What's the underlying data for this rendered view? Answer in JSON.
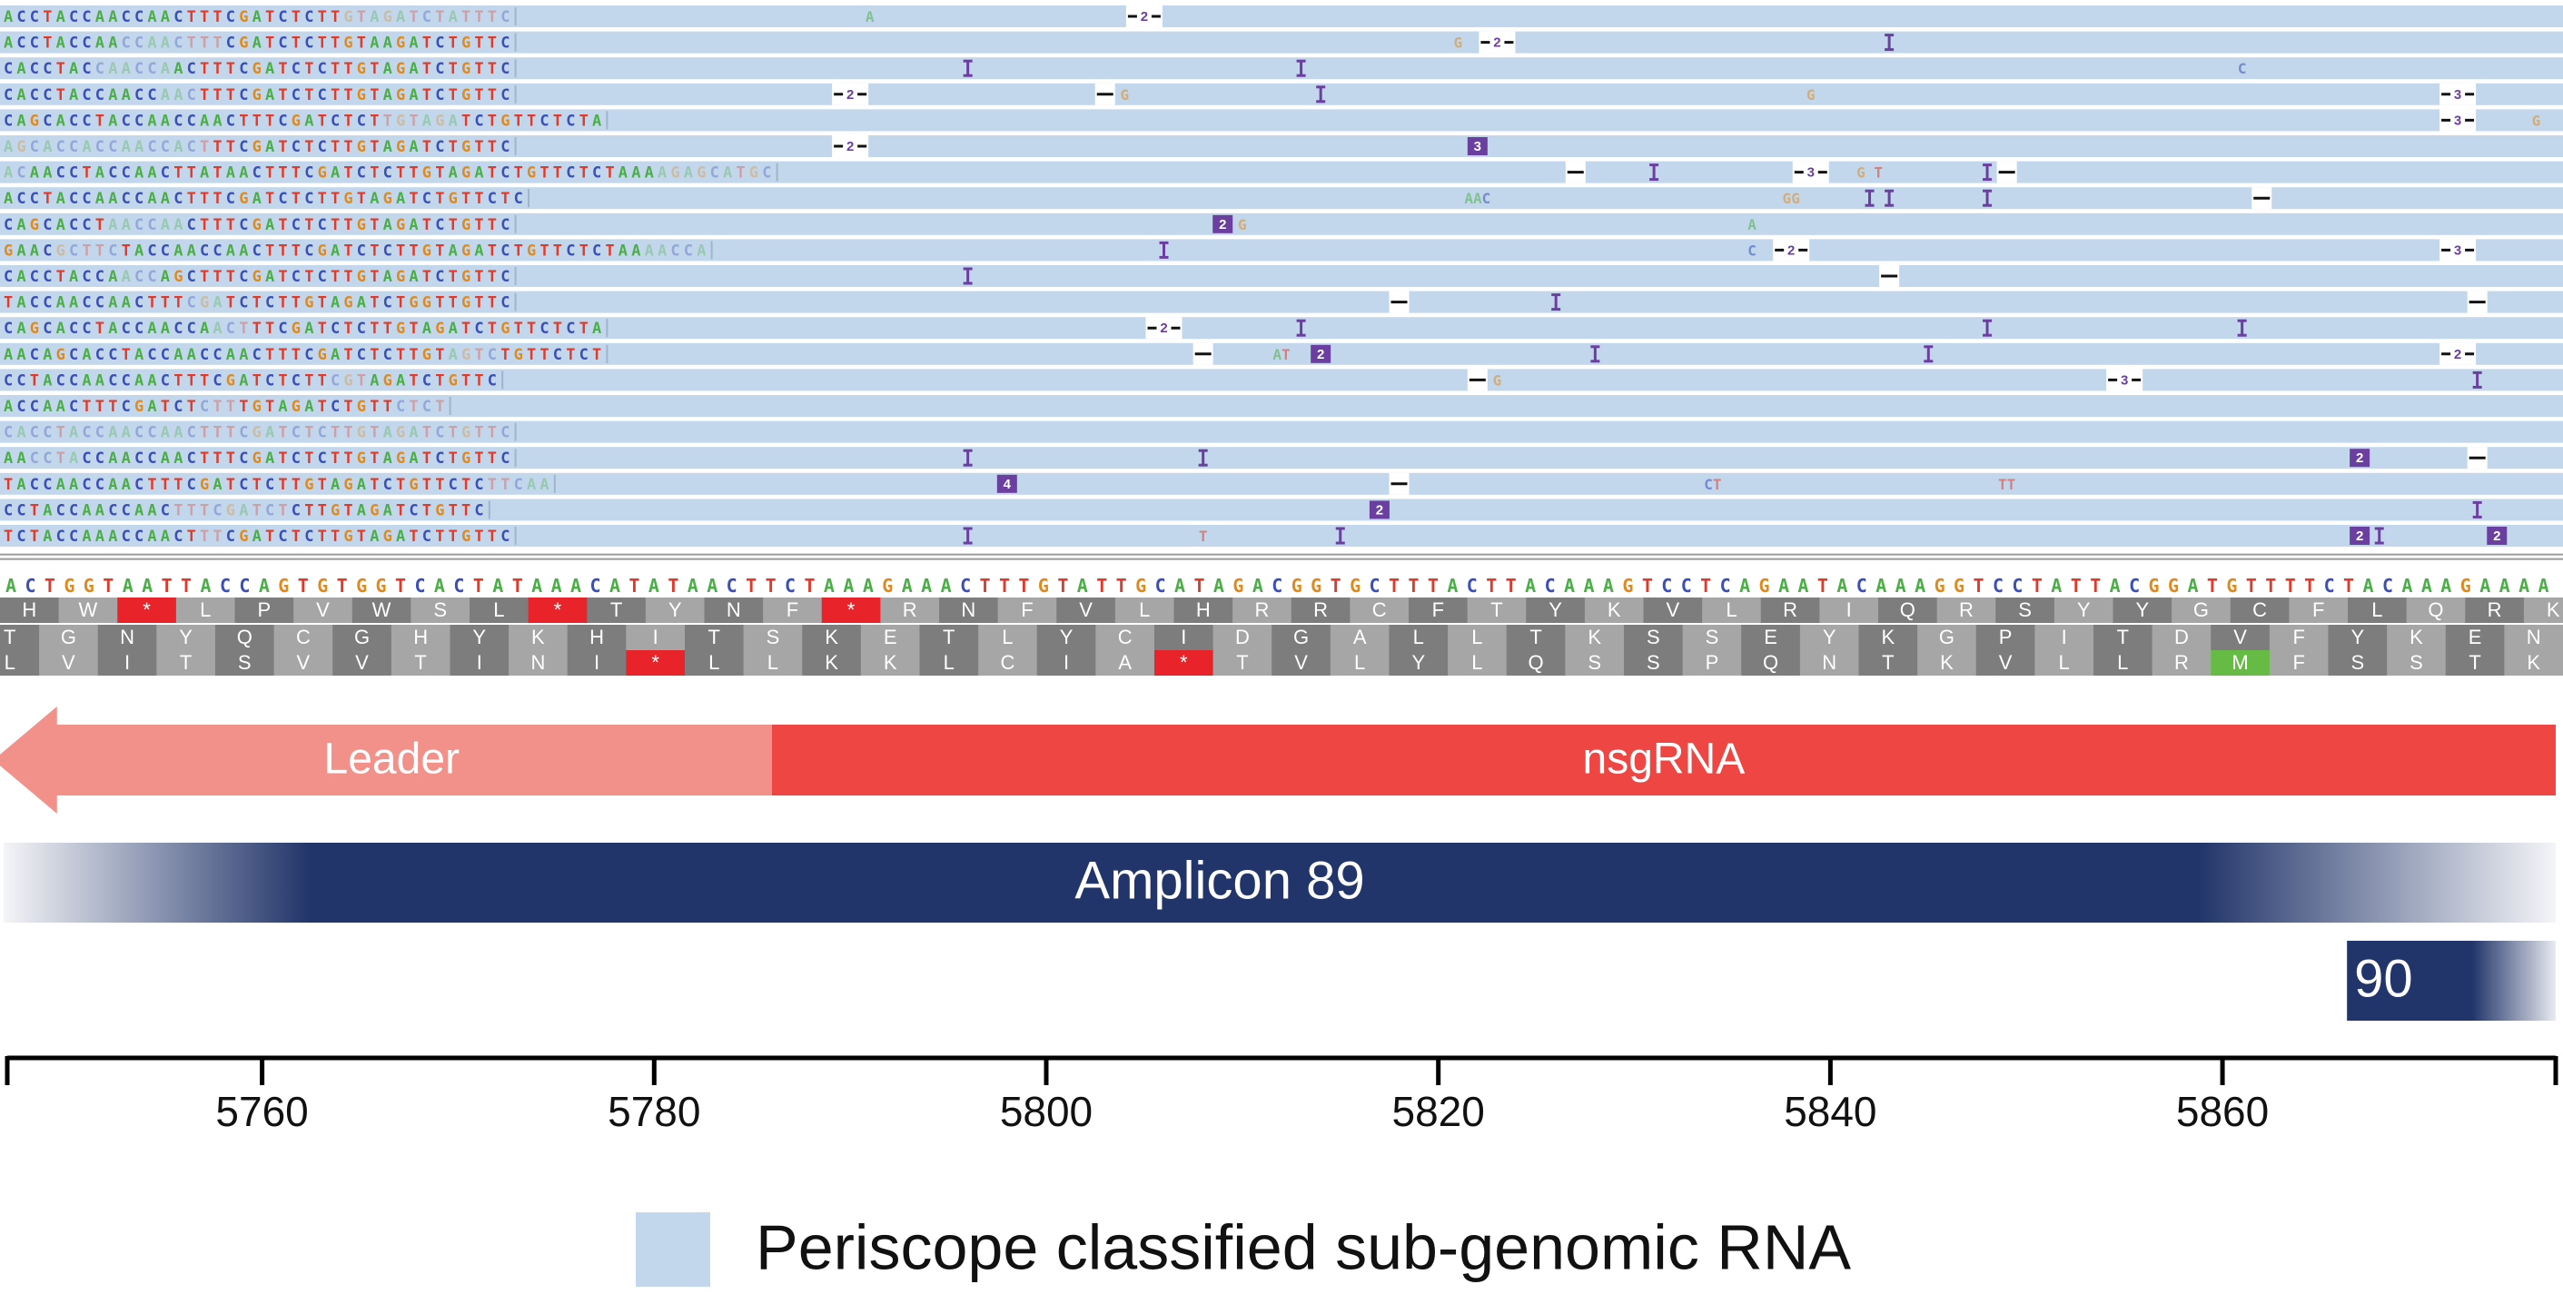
{
  "colors": {
    "read": "#c2d7eb",
    "read_gap": "#ffffff",
    "base_A": "#4cae47",
    "base_C": "#3b4fb8",
    "base_G": "#e08a1e",
    "base_T": "#e23a2a",
    "marker": "#6b3fa0",
    "stop": "#e8232a",
    "start": "#66bb44",
    "leader": "#f2918a",
    "nsgrna": "#ee4643",
    "amplicon": "#22356a",
    "axis": "#000000"
  },
  "reads": [
    {
      "seq": "ACCTACCAACCAACTTTCGATCTCTTGTAGATCTATTTC",
      "faded": [
        26,
        39
      ],
      "deletions": [
        {
          "pos": 5805,
          "label": "2"
        }
      ],
      "insertions": [],
      "marks": [
        {
          "pos": 5791,
          "text": "A"
        }
      ]
    },
    {
      "seq": "ACCTACCAACCAACTTTCGATCTCTTGTAAGATCTGTTC",
      "faded": [
        9,
        17
      ],
      "deletions": [
        {
          "pos": 5823,
          "label": "2"
        }
      ],
      "insertions": [
        {
          "pos": 5843,
          "label": ""
        }
      ],
      "marks": [
        {
          "pos": 5821,
          "text": "G"
        }
      ]
    },
    {
      "seq": "CACCTACCAACCAACTTTCGATCTCTTGTAGATCTGTTC",
      "faded": [
        7,
        13
      ],
      "deletions": [],
      "insertions": [
        {
          "pos": 5796,
          "label": ""
        },
        {
          "pos": 5813,
          "label": ""
        }
      ],
      "marks": [
        {
          "pos": 5861,
          "text": "C"
        }
      ]
    },
    {
      "seq": "CACCTACCAACCAACTTTCGATCTCTTGTAGATCTGTTC",
      "faded": [
        12,
        15
      ],
      "deletions": [
        {
          "pos": 5790,
          "label": "2"
        },
        {
          "pos": 5803,
          "label": ""
        },
        {
          "pos": 5872,
          "label": "3"
        }
      ],
      "insertions": [
        {
          "pos": 5814,
          "label": ""
        }
      ],
      "marks": [
        {
          "pos": 5804,
          "text": "G"
        },
        {
          "pos": 5839,
          "text": "G"
        }
      ]
    },
    {
      "seq": "CAGCACCTACCAACCAACTTTCGATCTCTTGTAGATCTGTTCTCTA",
      "faded": [
        29,
        35
      ],
      "deletions": [
        {
          "pos": 5872,
          "label": "3"
        }
      ],
      "insertions": [],
      "marks": [
        {
          "pos": 5876,
          "text": "G"
        }
      ]
    },
    {
      "seq": "AGCACCACCAACCACTTTCGATCTCTTGTAGATCTGTTC",
      "faded": [
        0,
        16
      ],
      "deletions": [
        {
          "pos": 5790,
          "label": "2"
        }
      ],
      "insertions": [
        {
          "pos": 5822,
          "label": "3"
        }
      ],
      "marks": []
    },
    {
      "seq": "ACAACCTACCAACTTATAACTTTCGATCTCTTGTAGATCTGTTCTCTAAAAGAGCATGC",
      "faded": [
        0,
        2,
        50,
        59
      ],
      "deletions": [
        {
          "pos": 5827,
          "label": ""
        },
        {
          "pos": 5839,
          "label": "3"
        },
        {
          "pos": 5849,
          "label": ""
        }
      ],
      "insertions": [
        {
          "pos": 5831,
          "label": ""
        },
        {
          "pos": 5848,
          "label": ""
        }
      ],
      "marks": [
        {
          "pos": 5842,
          "text": "G T"
        }
      ]
    },
    {
      "seq": "ACCTACCAACCAACTTTCGATCTCTTGTAGATCTGTTCTC",
      "faded": [],
      "deletions": [
        {
          "pos": 5862,
          "label": ""
        }
      ],
      "insertions": [
        {
          "pos": 5842,
          "label": ""
        },
        {
          "pos": 5843,
          "label": ""
        },
        {
          "pos": 5848,
          "label": ""
        }
      ],
      "marks": [
        {
          "pos": 5822,
          "text": "AAC"
        },
        {
          "pos": 5838,
          "text": "GG"
        }
      ]
    },
    {
      "seq": "CAGCACCTAACCAACTTTCGATCTCTTGTAGATCTGTTC",
      "faded": [
        8,
        14
      ],
      "deletions": [],
      "insertions": [
        {
          "pos": 5809,
          "label": "2"
        }
      ],
      "marks": [
        {
          "pos": 5810,
          "text": "G"
        },
        {
          "pos": 5836,
          "text": "A"
        }
      ]
    },
    {
      "seq": "GAACGCTTCTACCAACCAACTTTCGATCTCTTGTAGATCTGTTCTCTAAAACCA",
      "faded": [
        4,
        9,
        49,
        54
      ],
      "deletions": [
        {
          "pos": 5838,
          "label": "2"
        },
        {
          "pos": 5872,
          "label": "3"
        }
      ],
      "insertions": [
        {
          "pos": 5806,
          "label": ""
        }
      ],
      "marks": [
        {
          "pos": 5836,
          "text": "C"
        }
      ]
    },
    {
      "seq": "CACCTACCAACCAGCTTTCGATCTCTTGTAGATCTGTTC",
      "faded": [
        9,
        12
      ],
      "deletions": [
        {
          "pos": 5843,
          "label": ""
        }
      ],
      "insertions": [
        {
          "pos": 5796,
          "label": ""
        }
      ],
      "marks": []
    },
    {
      "seq": "TACCAACCAACTTTCGATCTCTTGTAGATCTGGTTGTTC",
      "faded": [
        14,
        17
      ],
      "deletions": [
        {
          "pos": 5818,
          "label": ""
        },
        {
          "pos": 5873,
          "label": ""
        }
      ],
      "insertions": [
        {
          "pos": 5826,
          "label": ""
        }
      ],
      "marks": []
    },
    {
      "seq": "CAGCACCTACCAACCAACTTTCGATCTCTTGTAGATCTGTTCTCTA",
      "faded": [
        16,
        19
      ],
      "deletions": [
        {
          "pos": 5806,
          "label": "2"
        }
      ],
      "insertions": [
        {
          "pos": 5813,
          "label": ""
        },
        {
          "pos": 5848,
          "label": ""
        },
        {
          "pos": 5861,
          "label": ""
        }
      ],
      "marks": []
    },
    {
      "seq": "AACAGCACCTACCAACCAACTTTCGATCTCTTGTAGTCTGTTCTCT",
      "faded": [
        34,
        38
      ],
      "deletions": [
        {
          "pos": 5808,
          "label": ""
        },
        {
          "pos": 5872,
          "label": "2"
        }
      ],
      "insertions": [
        {
          "pos": 5814,
          "label": "2"
        },
        {
          "pos": 5828,
          "label": ""
        },
        {
          "pos": 5845,
          "label": ""
        }
      ],
      "marks": [
        {
          "pos": 5812,
          "text": "AT"
        }
      ]
    },
    {
      "seq": "CCTACCAACCAACTTTCGATCTCTTCGTAGATCTGTTC",
      "faded": [
        25,
        28
      ],
      "deletions": [
        {
          "pos": 5822,
          "label": ""
        },
        {
          "pos": 5855,
          "label": "3"
        }
      ],
      "insertions": [
        {
          "pos": 5873,
          "label": ""
        }
      ],
      "marks": [
        {
          "pos": 5823,
          "text": "G"
        }
      ]
    },
    {
      "seq": "ACCAACTTTCGATCTCTTTGTAGATCTGTTCTCT",
      "faded": [
        15,
        18,
        30,
        34
      ],
      "deletions": [],
      "insertions": [],
      "marks": []
    },
    {
      "seq": "CACCTACCAACCAACTTTCGATCTCTTGTAGATCTGTTC",
      "faded": [
        0,
        39
      ],
      "deletions": [],
      "insertions": [],
      "marks": []
    },
    {
      "seq": "AACCTACCAACCAACTTTCGATCTCTTGTAGATCTGTTC",
      "faded": [
        2,
        6
      ],
      "deletions": [
        {
          "pos": 5873,
          "label": ""
        }
      ],
      "insertions": [
        {
          "pos": 5796,
          "label": ""
        },
        {
          "pos": 5808,
          "label": ""
        },
        {
          "pos": 5867,
          "label": "2"
        }
      ],
      "marks": []
    },
    {
      "seq": "TACCAACCAACTTTCGATCTCTTGTAGATCTGTTCTCTTCAA",
      "faded": [
        37,
        42
      ],
      "deletions": [
        {
          "pos": 5818,
          "label": ""
        }
      ],
      "insertions": [
        {
          "pos": 5798,
          "label": "4"
        }
      ],
      "marks": [
        {
          "pos": 5834,
          "text": "CT"
        },
        {
          "pos": 5849,
          "text": "TT"
        }
      ]
    },
    {
      "seq": "CCTACCAACCAACTTTCGATCTCTTGTAGATCTGTTC",
      "faded": [
        13,
        22
      ],
      "deletions": [],
      "insertions": [
        {
          "pos": 5817,
          "label": "2"
        },
        {
          "pos": 5873,
          "label": ""
        }
      ],
      "marks": []
    },
    {
      "seq": "TCTACCAAACCAACTTTCGATCTCTTGTAGATCTTGTTC",
      "faded": [
        15,
        17
      ],
      "deletions": [],
      "insertions": [
        {
          "pos": 5796,
          "label": ""
        },
        {
          "pos": 5815,
          "label": ""
        },
        {
          "pos": 5867,
          "label": "2"
        },
        {
          "pos": 5868,
          "label": ""
        },
        {
          "pos": 5874,
          "label": "2"
        }
      ],
      "marks": [
        {
          "pos": 5808,
          "text": "T"
        }
      ]
    }
  ],
  "reference": {
    "sequence": "ACTGGTAATTACCAGTGTGGTCACTATAAACATATAACTTCTAAAGAAACTTTGTATTGCATAGACGGTGCTTTACTTACAAAGTCCTCAGAATACAAAGGTCCTATTACGGATGTTTTCTACAAAGAAAA",
    "frame1": [
      "H",
      "W",
      "*",
      "L",
      "P",
      "V",
      "W",
      "S",
      "L",
      "*",
      "T",
      "Y",
      "N",
      "F",
      "*",
      "R",
      "N",
      "F",
      "V",
      "L",
      "H",
      "R",
      "R",
      "C",
      "F",
      "T",
      "Y",
      "K",
      "V",
      "L",
      "R",
      "I",
      "Q",
      "R",
      "S",
      "Y",
      "Y",
      "G",
      "C",
      "F",
      "L",
      "Q",
      "R",
      "K"
    ],
    "frame2": [
      "T",
      "G",
      "N",
      "Y",
      "Q",
      "C",
      "G",
      "H",
      "Y",
      "K",
      "H",
      "I",
      "T",
      "S",
      "K",
      "E",
      "T",
      "L",
      "Y",
      "C",
      "I",
      "D",
      "G",
      "A",
      "L",
      "L",
      "T",
      "K",
      "S",
      "S",
      "E",
      "Y",
      "K",
      "G",
      "P",
      "I",
      "T",
      "D",
      "V",
      "F",
      "Y",
      "K",
      "E",
      "N"
    ],
    "frame3": [
      "L",
      "V",
      "I",
      "T",
      "S",
      "V",
      "V",
      "T",
      "I",
      "N",
      "I",
      "*",
      "L",
      "L",
      "K",
      "K",
      "L",
      "C",
      "I",
      "A",
      "*",
      "T",
      "V",
      "L",
      "Y",
      "L",
      "Q",
      "S",
      "S",
      "P",
      "Q",
      "N",
      "T",
      "K",
      "V",
      "L",
      "L",
      "R",
      "M",
      "F",
      "S",
      "S",
      "T",
      "K",
      "K"
    ]
  },
  "tracks": {
    "leader_label": "Leader",
    "nsgrna_label": "nsgRNA",
    "amplicon_label": "Amplicon 89",
    "amplicon_next_label": "90",
    "leader_range": [
      5750,
      5786
    ],
    "nsgrna_range": [
      5786,
      5877
    ],
    "amplicon_range": [
      5747,
      5877
    ],
    "amplicon_next_range": [
      5867,
      5877
    ]
  },
  "axis": {
    "range": [
      5747,
      5877
    ],
    "ticks": [
      5760,
      5780,
      5800,
      5820,
      5840,
      5860
    ],
    "tick_labels": [
      "5760",
      "5780",
      "5800",
      "5820",
      "5840",
      "5860"
    ]
  },
  "legend": {
    "label": "Periscope classified sub-genomic RNA"
  }
}
